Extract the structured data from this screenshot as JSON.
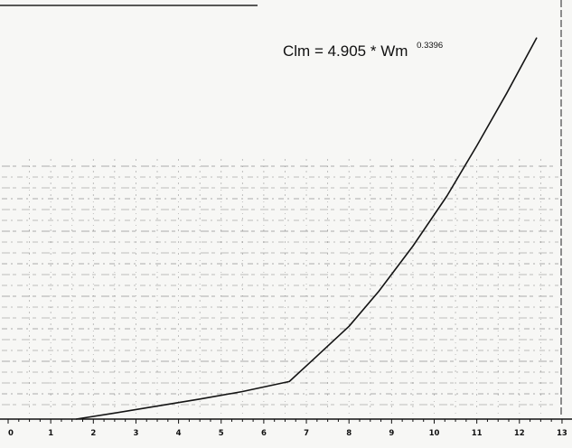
{
  "chart_data": {
    "type": "line",
    "title": "",
    "xlabel": "",
    "ylabel": "",
    "xlim": [
      0,
      13
    ],
    "x_ticks": [
      "0",
      "1",
      "2",
      "3",
      "4",
      "5",
      "6",
      "7",
      "8",
      "9",
      "10",
      "11",
      "12",
      "13"
    ],
    "grid": true,
    "annotation": {
      "main": "Clm = 4.905 * Wm",
      "exponent": "0.3396"
    },
    "series": [
      {
        "x": [
          1.6,
          2.5,
          3.5,
          4.5,
          5.5,
          6.6,
          7.2,
          8.0,
          8.7,
          9.5,
          10.3,
          11.0,
          11.7,
          12.4
        ],
        "y": [
          0.0,
          0.12,
          0.26,
          0.4,
          0.55,
          0.75,
          1.22,
          1.85,
          2.55,
          3.45,
          4.45,
          5.45,
          6.5,
          7.6
        ]
      }
    ],
    "colors": {
      "line": "#141414",
      "grid": "#6e6e6e",
      "background": "#f7f7f5"
    }
  }
}
